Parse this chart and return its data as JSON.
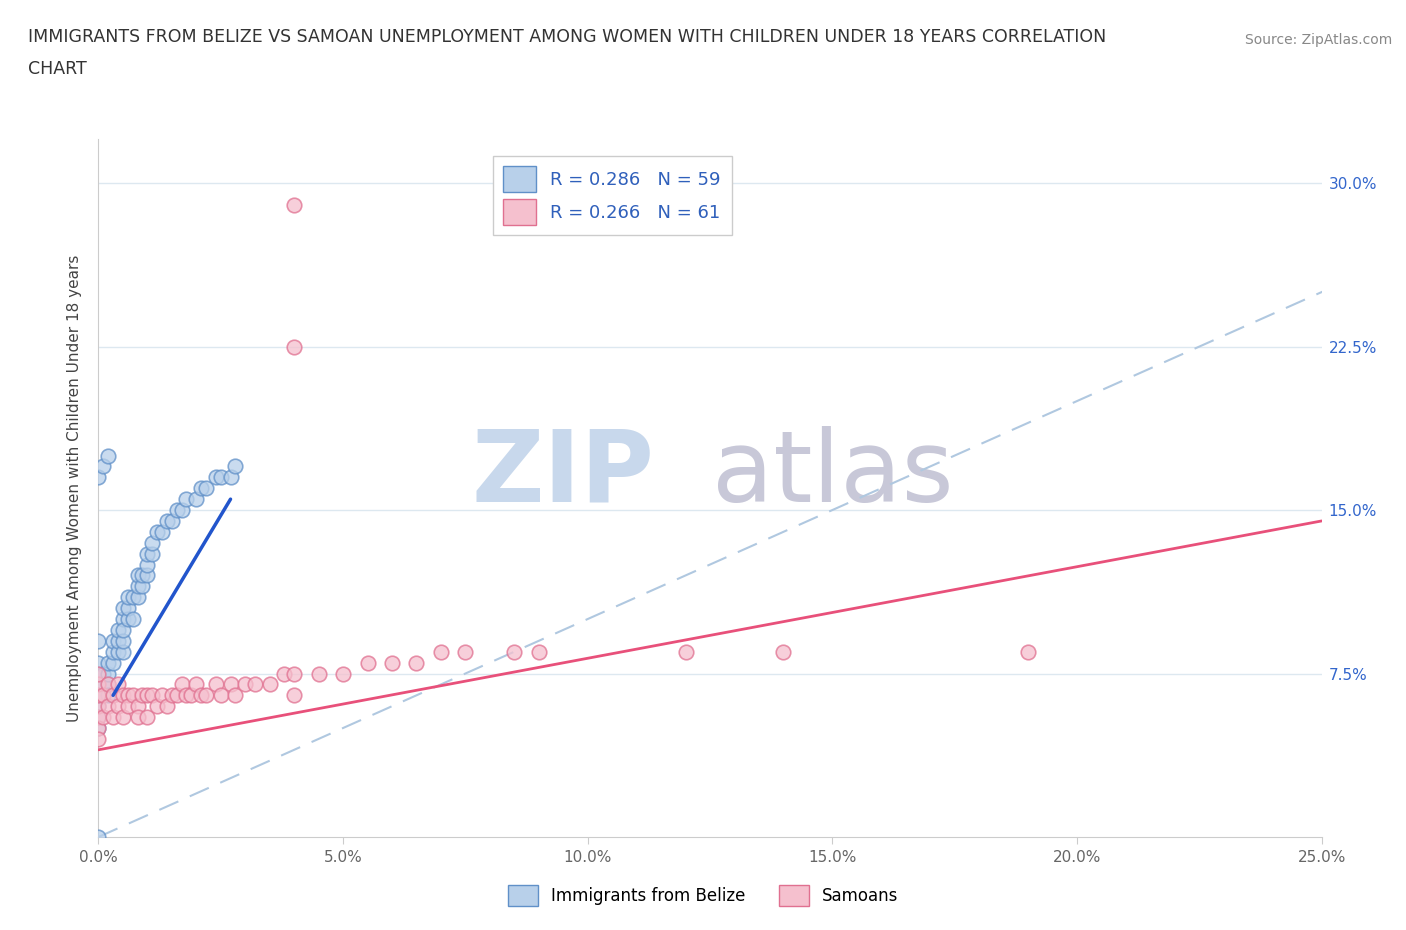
{
  "title_line1": "IMMIGRANTS FROM BELIZE VS SAMOAN UNEMPLOYMENT AMONG WOMEN WITH CHILDREN UNDER 18 YEARS CORRELATION",
  "title_line2": "CHART",
  "source_text": "Source: ZipAtlas.com",
  "ylabel": "Unemployment Among Women with Children Under 18 years",
  "xlim": [
    0.0,
    0.25
  ],
  "ylim": [
    0.0,
    0.32
  ],
  "xticks": [
    0.0,
    0.05,
    0.1,
    0.15,
    0.2,
    0.25
  ],
  "xticklabels": [
    "0.0%",
    "5.0%",
    "10.0%",
    "15.0%",
    "20.0%",
    "25.0%"
  ],
  "yticks": [
    0.0,
    0.075,
    0.15,
    0.225,
    0.3
  ],
  "yticklabels_right": [
    "",
    "7.5%",
    "15.0%",
    "22.5%",
    "30.0%"
  ],
  "belize_color_fill": "#b8d0ea",
  "belize_color_edge": "#6090c8",
  "samoan_color_fill": "#f5c0ce",
  "samoan_color_edge": "#e07090",
  "belize_line_color": "#2255cc",
  "samoan_line_color": "#e8507a",
  "diagonal_color": "#b0c8e0",
  "grid_color": "#dde8f0",
  "watermark_zip_color": "#c8d8ec",
  "watermark_atlas_color": "#c8c8d8",
  "legend_label_1": "R = 0.286   N = 59",
  "legend_label_2": "R = 0.266   N = 61",
  "legend_belize": "Immigrants from Belize",
  "legend_samoan": "Samoans",
  "background_color": "#ffffff",
  "belize_trend_x0": 0.003,
  "belize_trend_y0": 0.065,
  "belize_trend_x1": 0.027,
  "belize_trend_y1": 0.155,
  "samoan_trend_x0": 0.0,
  "samoan_trend_y0": 0.04,
  "samoan_trend_x1": 0.25,
  "samoan_trend_y1": 0.145,
  "belize_scatter_x": [
    0.0,
    0.0,
    0.0,
    0.0,
    0.0,
    0.0,
    0.0,
    0.0,
    0.001,
    0.001,
    0.001,
    0.002,
    0.002,
    0.002,
    0.002,
    0.003,
    0.003,
    0.003,
    0.004,
    0.004,
    0.004,
    0.005,
    0.005,
    0.005,
    0.005,
    0.005,
    0.006,
    0.006,
    0.006,
    0.007,
    0.007,
    0.008,
    0.008,
    0.008,
    0.009,
    0.009,
    0.01,
    0.01,
    0.01,
    0.011,
    0.011,
    0.012,
    0.013,
    0.014,
    0.015,
    0.016,
    0.017,
    0.018,
    0.02,
    0.021,
    0.022,
    0.024,
    0.025,
    0.027,
    0.028,
    0.0,
    0.001,
    0.002,
    0.0
  ],
  "belize_scatter_y": [
    0.06,
    0.07,
    0.075,
    0.065,
    0.055,
    0.08,
    0.09,
    0.05,
    0.07,
    0.075,
    0.065,
    0.07,
    0.075,
    0.065,
    0.08,
    0.08,
    0.085,
    0.09,
    0.085,
    0.09,
    0.095,
    0.085,
    0.09,
    0.1,
    0.095,
    0.105,
    0.1,
    0.105,
    0.11,
    0.1,
    0.11,
    0.11,
    0.115,
    0.12,
    0.115,
    0.12,
    0.12,
    0.125,
    0.13,
    0.13,
    0.135,
    0.14,
    0.14,
    0.145,
    0.145,
    0.15,
    0.15,
    0.155,
    0.155,
    0.16,
    0.16,
    0.165,
    0.165,
    0.165,
    0.17,
    0.165,
    0.17,
    0.175,
    0.0
  ],
  "samoan_scatter_x": [
    0.0,
    0.0,
    0.0,
    0.0,
    0.0,
    0.0,
    0.0,
    0.001,
    0.001,
    0.002,
    0.002,
    0.003,
    0.003,
    0.004,
    0.004,
    0.005,
    0.005,
    0.006,
    0.006,
    0.007,
    0.008,
    0.008,
    0.009,
    0.01,
    0.01,
    0.011,
    0.012,
    0.013,
    0.014,
    0.015,
    0.016,
    0.017,
    0.018,
    0.019,
    0.02,
    0.021,
    0.022,
    0.024,
    0.025,
    0.027,
    0.028,
    0.03,
    0.032,
    0.035,
    0.038,
    0.04,
    0.04,
    0.045,
    0.05,
    0.055,
    0.06,
    0.065,
    0.07,
    0.075,
    0.04,
    0.085,
    0.09,
    0.12,
    0.14,
    0.19,
    0.04
  ],
  "samoan_scatter_y": [
    0.055,
    0.06,
    0.065,
    0.07,
    0.05,
    0.075,
    0.045,
    0.065,
    0.055,
    0.07,
    0.06,
    0.065,
    0.055,
    0.07,
    0.06,
    0.065,
    0.055,
    0.065,
    0.06,
    0.065,
    0.06,
    0.055,
    0.065,
    0.065,
    0.055,
    0.065,
    0.06,
    0.065,
    0.06,
    0.065,
    0.065,
    0.07,
    0.065,
    0.065,
    0.07,
    0.065,
    0.065,
    0.07,
    0.065,
    0.07,
    0.065,
    0.07,
    0.07,
    0.07,
    0.075,
    0.065,
    0.075,
    0.075,
    0.075,
    0.08,
    0.08,
    0.08,
    0.085,
    0.085,
    0.29,
    0.085,
    0.085,
    0.085,
    0.085,
    0.085,
    0.225
  ]
}
